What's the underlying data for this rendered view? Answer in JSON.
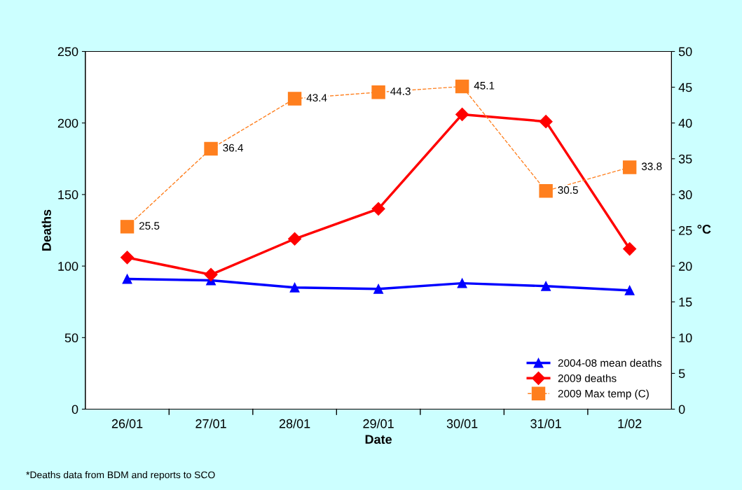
{
  "chart_data": {
    "type": "line",
    "xlabel": "Date",
    "ylabel": "Deaths",
    "y2label": "°C",
    "categories": [
      "26/01",
      "27/01",
      "28/01",
      "29/01",
      "30/01",
      "31/01",
      "1/02"
    ],
    "series": [
      {
        "name": "2004-08 mean deaths",
        "color": "#0000ff",
        "marker": "triangle",
        "line_style": "solid",
        "values": [
          91,
          90,
          85,
          84,
          88,
          86,
          83
        ]
      },
      {
        "name": "2009 deaths",
        "color": "#ff0000",
        "marker": "diamond",
        "line_style": "solid",
        "values": [
          106,
          94,
          119,
          140,
          206,
          201,
          112
        ]
      },
      {
        "name": "2009 Max temp (C)",
        "color": "#ff7f1e",
        "marker": "square",
        "line_style": "dashed",
        "axis": "y2",
        "values": [
          25.5,
          36.4,
          43.4,
          44.3,
          45.1,
          30.5,
          33.8
        ],
        "value_labels": [
          "25.5",
          "36.4",
          "43.4",
          "44.3",
          "45.1",
          "30.5",
          "33.8"
        ]
      }
    ],
    "ylim": [
      0,
      250
    ],
    "yticks": [
      0,
      50,
      100,
      150,
      200,
      250
    ],
    "y2lim": [
      0,
      50
    ],
    "y2ticks": [
      0,
      5,
      10,
      15,
      20,
      25,
      30,
      35,
      40,
      45,
      50
    ],
    "grid": false,
    "legend": "bottom right",
    "annotations": [
      "*Deaths data from BDM and reports to SCO"
    ]
  }
}
